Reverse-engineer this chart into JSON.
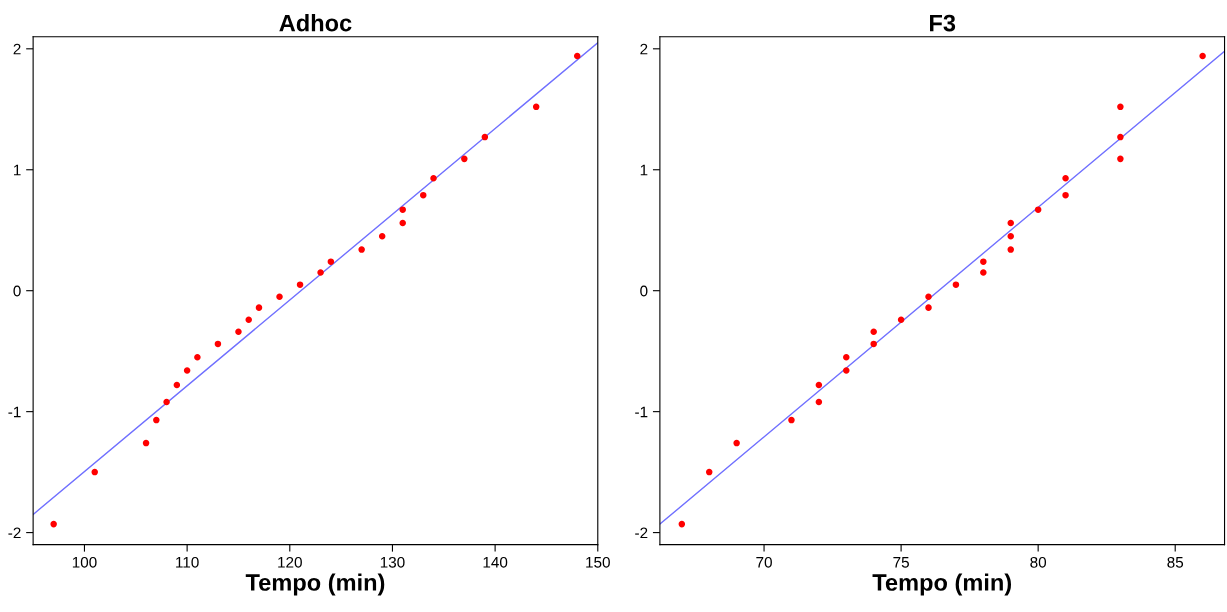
{
  "chart_data": [
    {
      "type": "scatter",
      "title": "Adhoc",
      "xlabel": "Tempo (min)",
      "xlim": [
        95,
        150
      ],
      "ylim": [
        -2.1,
        2.1
      ],
      "xticks": [
        100,
        110,
        120,
        130,
        140,
        150
      ],
      "yticks": [
        -2,
        -1,
        0,
        1,
        2
      ],
      "grid": false,
      "series": [
        {
          "marker": "circle",
          "color": "#ff0000",
          "x": [
            97,
            101,
            106,
            107,
            108,
            109,
            110,
            111,
            113,
            115,
            116,
            117,
            119,
            121,
            123,
            124,
            127,
            129,
            131,
            131,
            133,
            134,
            137,
            139,
            144,
            148
          ],
          "values": [
            -1.93,
            -1.5,
            -1.26,
            -1.07,
            -0.92,
            -0.78,
            -0.66,
            -0.55,
            -0.44,
            -0.34,
            -0.24,
            -0.14,
            -0.05,
            0.05,
            0.15,
            0.24,
            0.34,
            0.45,
            0.56,
            0.67,
            0.79,
            0.93,
            1.09,
            1.27,
            1.52,
            1.94
          ]
        },
        {
          "type": "line",
          "color": "#7070ff",
          "x": [
            95,
            150
          ],
          "values": [
            -1.85,
            2.05
          ]
        }
      ]
    },
    {
      "type": "scatter",
      "title": "F3",
      "xlabel": "Tempo (min)",
      "xlim": [
        66.2,
        86.8
      ],
      "ylim": [
        -2.1,
        2.1
      ],
      "xticks": [
        70,
        75,
        80,
        85
      ],
      "yticks": [
        -2,
        -1,
        0,
        1,
        2
      ],
      "grid": false,
      "series": [
        {
          "marker": "circle",
          "color": "#ff0000",
          "x": [
            67,
            68,
            69,
            71,
            72,
            72,
            73,
            73,
            74,
            74,
            75,
            76,
            76,
            77,
            78,
            78,
            79,
            79,
            79,
            80,
            81,
            81,
            83,
            83,
            83,
            86
          ],
          "values": [
            -1.93,
            -1.5,
            -1.26,
            -1.07,
            -0.92,
            -0.78,
            -0.66,
            -0.55,
            -0.44,
            -0.34,
            -0.24,
            -0.14,
            -0.05,
            0.05,
            0.15,
            0.24,
            0.34,
            0.45,
            0.56,
            0.67,
            0.79,
            0.93,
            1.09,
            1.27,
            1.52,
            1.94
          ]
        },
        {
          "type": "line",
          "color": "#7070ff",
          "x": [
            66.2,
            86.8
          ],
          "values": [
            -1.93,
            1.98
          ]
        }
      ]
    }
  ]
}
